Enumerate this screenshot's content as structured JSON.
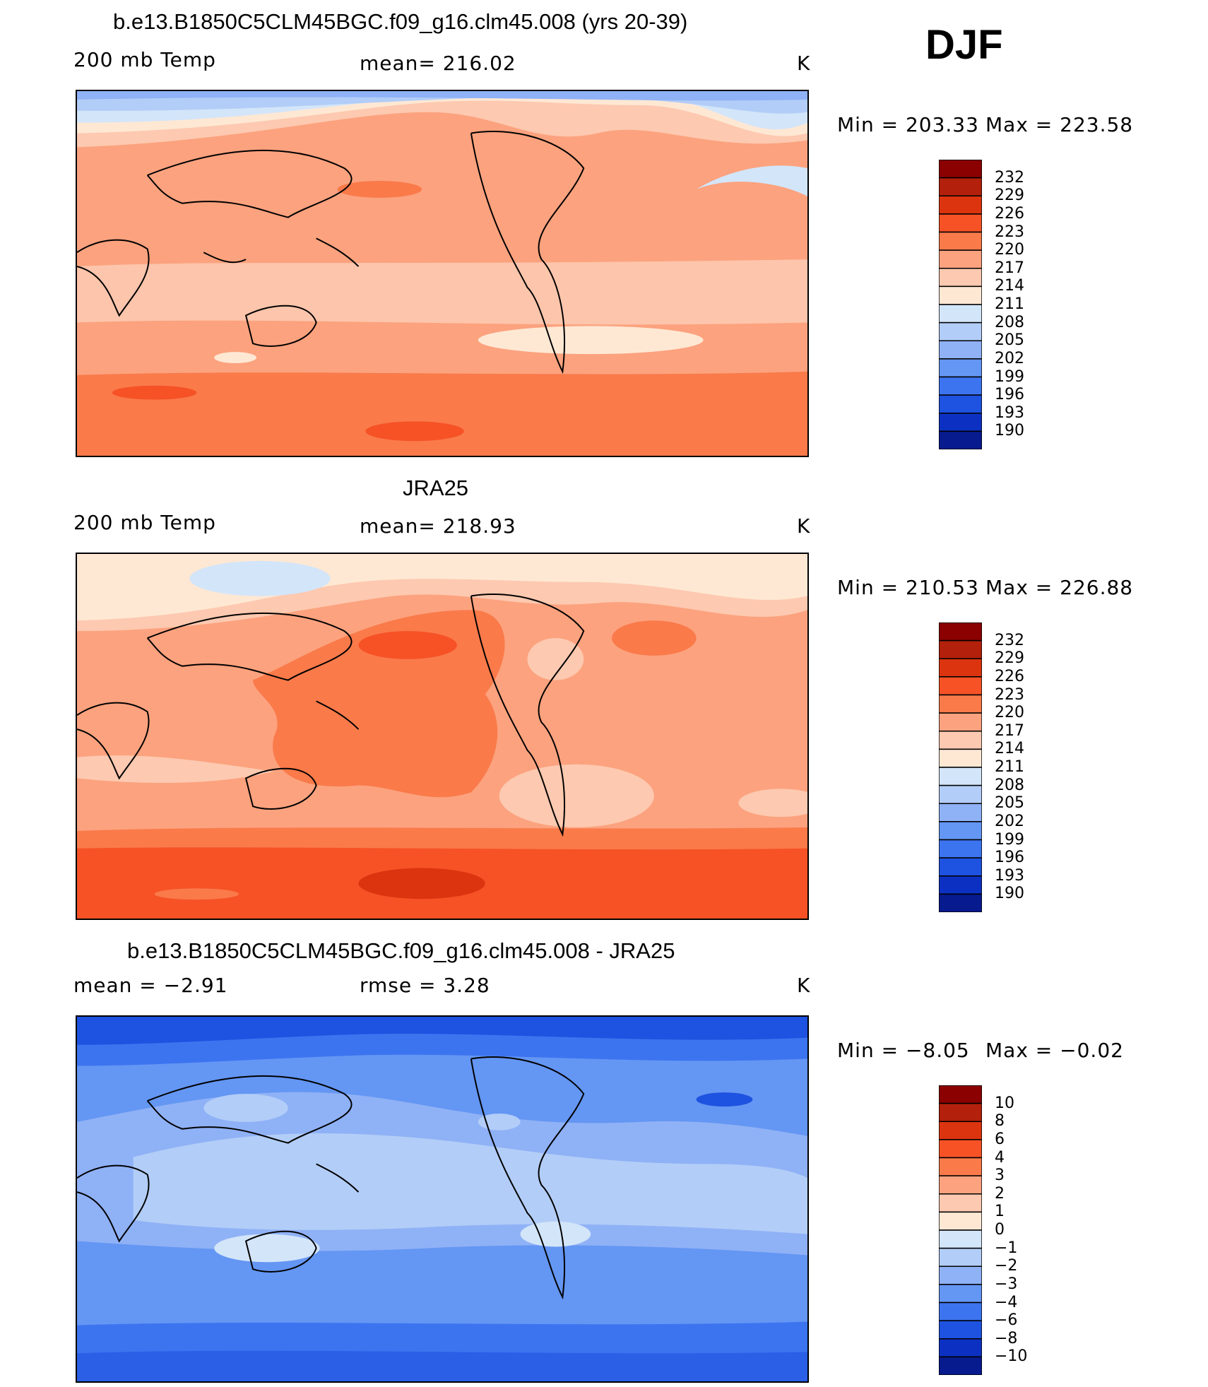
{
  "figure": {
    "season": "DJF",
    "panels": [
      {
        "title": "b.e13.B1850C5CLM45BGC.f09_g16.clm45.008 (yrs 20-39)",
        "left_label": "200 mb Temp",
        "center_label": "mean=  216.02",
        "units": "K",
        "min_text": "Min  =  203.33",
        "max_text": "Max  =  223.58"
      },
      {
        "title": "JRA25",
        "left_label": "200 mb Temp",
        "center_label": "mean=  218.93",
        "units": "K",
        "min_text": "Min  =  210.53",
        "max_text": "Max  =  226.88"
      },
      {
        "title": "b.e13.B1850C5CLM45BGC.f09_g16.clm45.008 - JRA25",
        "left_label": "mean  =    −2.91",
        "center_label": "rmse  =     3.28",
        "units": "K",
        "min_text": "Min  =    −8.05",
        "max_text": "Max  =    −0.02"
      }
    ]
  },
  "chart_data": {
    "type": "heatmap",
    "colorbars": [
      {
        "levels": [
          "232",
          "229",
          "226",
          "223",
          "220",
          "217",
          "214",
          "211",
          "208",
          "205",
          "202",
          "199",
          "196",
          "193",
          "190"
        ],
        "colors": [
          "#8b0000",
          "#b3200b",
          "#dc340f",
          "#f65226",
          "#fa7a4a",
          "#fca27e",
          "#fdc9b0",
          "#fee8d4",
          "#d3e5f9",
          "#b2cdf7",
          "#8fb1f6",
          "#6496f3",
          "#3c74f0",
          "#1e52e0",
          "#0c31c2",
          "#071a8e"
        ]
      },
      {
        "levels": [
          "232",
          "229",
          "226",
          "223",
          "220",
          "217",
          "214",
          "211",
          "208",
          "205",
          "202",
          "199",
          "196",
          "193",
          "190"
        ],
        "colors": [
          "#8b0000",
          "#b3200b",
          "#dc340f",
          "#f65226",
          "#fa7a4a",
          "#fca27e",
          "#fdc9b0",
          "#fee8d4",
          "#d3e5f9",
          "#b2cdf7",
          "#8fb1f6",
          "#6496f3",
          "#3c74f0",
          "#1e52e0",
          "#0c31c2",
          "#071a8e"
        ]
      },
      {
        "levels": [
          "10",
          "8",
          "6",
          "4",
          "3",
          "2",
          "1",
          "0",
          "−1",
          "−2",
          "−3",
          "−4",
          "−6",
          "−8",
          "−10"
        ],
        "colors": [
          "#8b0000",
          "#b3200b",
          "#dc340f",
          "#f65226",
          "#fa7a4a",
          "#fca27e",
          "#fdc9b0",
          "#fee8d4",
          "#d3e5f9",
          "#b2cdf7",
          "#8fb1f6",
          "#6496f3",
          "#3c74f0",
          "#1e52e0",
          "#0c31c2",
          "#071a8e"
        ]
      }
    ]
  }
}
